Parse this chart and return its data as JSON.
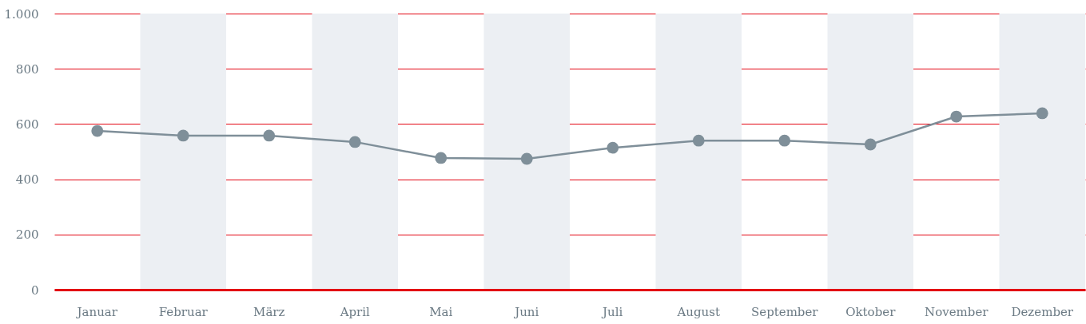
{
  "chart_data": {
    "type": "line",
    "categories": [
      "Januar",
      "Februar",
      "März",
      "April",
      "Mai",
      "Juni",
      "Juli",
      "August",
      "September",
      "Oktober",
      "November",
      "Dezember"
    ],
    "series": [
      {
        "color": "#7f8f99",
        "values": [
          575,
          558,
          558,
          535,
          477,
          474,
          514,
          540,
          540,
          526,
          627,
          639
        ]
      }
    ],
    "ylim": [
      0,
      1000
    ],
    "yticks": [
      0,
      200,
      400,
      600,
      800,
      {
        "value": 1000,
        "label": "1.000"
      }
    ],
    "grid": "y",
    "marker": "circle",
    "line_style": "solid",
    "bands": [
      {
        "axis": "x",
        "from": "Februar",
        "to": "Februar",
        "color": "#eceff3"
      },
      {
        "axis": "x",
        "from": "April",
        "to": "April",
        "color": "#eceff3"
      },
      {
        "axis": "x",
        "from": "Juni",
        "to": "Juni",
        "color": "#eceff3"
      },
      {
        "axis": "x",
        "from": "August",
        "to": "August",
        "color": "#eceff3"
      },
      {
        "axis": "x",
        "from": "Oktober",
        "to": "Oktober",
        "color": "#eceff3"
      },
      {
        "axis": "x",
        "from": "Dezember",
        "to": "Dezember",
        "color": "#eceff3"
      }
    ]
  }
}
